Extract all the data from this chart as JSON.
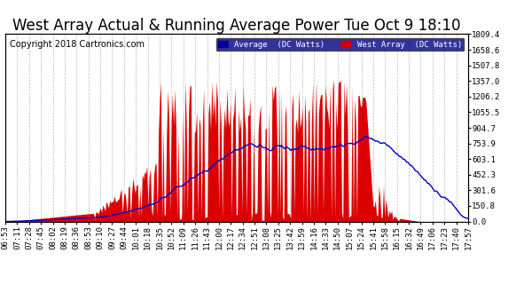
{
  "title": "West Array Actual & Running Average Power Tue Oct 9 18:10",
  "copyright": "Copyright 2018 Cartronics.com",
  "ylabel_right_ticks": [
    0.0,
    150.8,
    301.6,
    452.3,
    603.1,
    753.9,
    904.7,
    1055.5,
    1206.2,
    1357.0,
    1507.8,
    1658.6,
    1809.4
  ],
  "ymax": 1809.4,
  "ymin": 0.0,
  "legend_avg_label": "Average  (DC Watts)",
  "legend_west_label": "West Array  (DC Watts)",
  "area_color": "#dd0000",
  "avg_line_color": "#0000cc",
  "background_color": "#ffffff",
  "grid_color": "#bbbbbb",
  "title_fontsize": 12,
  "copyright_fontsize": 7,
  "tick_fontsize": 6.5,
  "x_tick_labels": [
    "06:53",
    "07:11",
    "07:28",
    "07:45",
    "08:02",
    "08:19",
    "08:36",
    "08:53",
    "09:10",
    "09:27",
    "09:44",
    "10:01",
    "10:18",
    "10:35",
    "10:52",
    "11:09",
    "11:26",
    "11:43",
    "12:00",
    "12:17",
    "12:34",
    "12:51",
    "13:08",
    "13:25",
    "13:42",
    "13:59",
    "14:16",
    "14:33",
    "14:50",
    "15:07",
    "15:24",
    "15:41",
    "15:58",
    "16:15",
    "16:32",
    "16:49",
    "17:06",
    "17:23",
    "17:40",
    "17:57"
  ]
}
